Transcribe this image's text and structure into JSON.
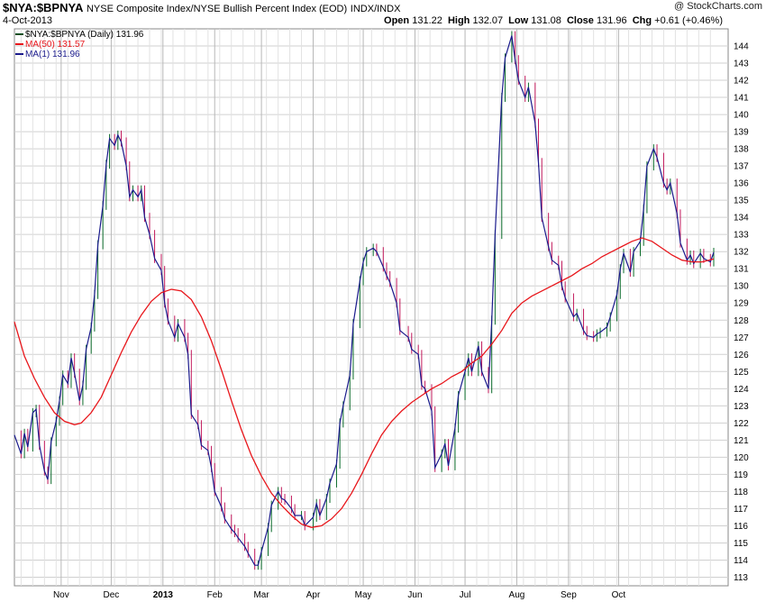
{
  "header": {
    "symbol": "$NYA:$BPNYA",
    "description": "NYSE Composite Index/NYSE Bullish Percent Index (EOD)",
    "exchange": "INDX/INDX",
    "date": "4-Oct-2013",
    "copyright": "@ StockCharts.com",
    "open_label": "Open",
    "open": "131.22",
    "high_label": "High",
    "high": "132.07",
    "low_label": "Low",
    "low": "131.08",
    "close_label": "Close",
    "close": "131.96",
    "chg_label": "Chg",
    "chg": "+0.61 (+0.46%)"
  },
  "legend": {
    "price": "$NYA:$BPNYA (Daily) 131.96",
    "ma50": "MA(50) 131.57",
    "ma1": "MA(1) 131.96"
  },
  "colors": {
    "ma50": "#e8161b",
    "ma1": "#1a1a8c",
    "up": "#0a6b2a",
    "down": "#c2185b",
    "grid": "#d0d0d0"
  },
  "chart_data": {
    "type": "line",
    "x_labels": [
      "Nov",
      "Dec",
      "2013",
      "Feb",
      "Mar",
      "Apr",
      "May",
      "Jun",
      "Jul",
      "Aug",
      "Sep",
      "Oct"
    ],
    "y_ticks": [
      113,
      114,
      115,
      116,
      117,
      118,
      119,
      120,
      121,
      122,
      123,
      124,
      125,
      126,
      127,
      128,
      129,
      130,
      131,
      132,
      133,
      134,
      135,
      136,
      137,
      138,
      139,
      140,
      141,
      142,
      143,
      144
    ],
    "ylim": [
      112.5,
      145
    ],
    "grid": true,
    "series": [
      {
        "name": "MA(1)",
        "points": [
          [
            "2012-10-04",
            121.3
          ],
          [
            "2012-10-08",
            120.2
          ],
          [
            "2012-10-10",
            121.4
          ],
          [
            "2012-10-12",
            120.6
          ],
          [
            "2012-10-15",
            122.6
          ],
          [
            "2012-10-17",
            122.8
          ],
          [
            "2012-10-19",
            120.7
          ],
          [
            "2012-10-22",
            119.2
          ],
          [
            "2012-10-24",
            118.7
          ],
          [
            "2012-10-26",
            120.9
          ],
          [
            "2012-10-29",
            122.1
          ],
          [
            "2012-10-31",
            123.3
          ],
          [
            "2012-11-02",
            124.8
          ],
          [
            "2012-11-05",
            124.3
          ],
          [
            "2012-11-07",
            125.8
          ],
          [
            "2012-11-09",
            124.9
          ],
          [
            "2012-11-12",
            123.3
          ],
          [
            "2012-11-14",
            124.2
          ],
          [
            "2012-11-16",
            126.3
          ],
          [
            "2012-11-19",
            127.6
          ],
          [
            "2012-11-21",
            129.5
          ],
          [
            "2012-11-23",
            132.4
          ],
          [
            "2012-11-26",
            134.7
          ],
          [
            "2012-11-28",
            137.1
          ],
          [
            "2012-11-30",
            138.6
          ],
          [
            "2012-12-03",
            138.2
          ],
          [
            "2012-12-05",
            138.8
          ],
          [
            "2012-12-07",
            138.4
          ],
          [
            "2012-12-10",
            137.0
          ],
          [
            "2012-12-12",
            135.2
          ],
          [
            "2012-12-14",
            135.6
          ],
          [
            "2012-12-17",
            135.2
          ],
          [
            "2012-12-19",
            135.6
          ],
          [
            "2012-12-21",
            134.0
          ],
          [
            "2012-12-24",
            133.0
          ],
          [
            "2012-12-27",
            131.6
          ],
          [
            "2012-12-31",
            130.9
          ],
          [
            "2013-01-02",
            129.0
          ],
          [
            "2013-01-04",
            128.0
          ],
          [
            "2013-01-08",
            127.0
          ],
          [
            "2013-01-10",
            127.8
          ],
          [
            "2013-01-14",
            127.0
          ],
          [
            "2013-01-16",
            126.0
          ],
          [
            "2013-01-18",
            122.5
          ],
          [
            "2013-01-22",
            121.9
          ],
          [
            "2013-01-24",
            120.7
          ],
          [
            "2013-01-28",
            120.4
          ],
          [
            "2013-01-30",
            119.4
          ],
          [
            "2013-02-01",
            118.0
          ],
          [
            "2013-02-05",
            117.1
          ],
          [
            "2013-02-07",
            116.4
          ],
          [
            "2013-02-11",
            115.8
          ],
          [
            "2013-02-13",
            115.6
          ],
          [
            "2013-02-15",
            115.3
          ],
          [
            "2013-02-19",
            114.8
          ],
          [
            "2013-02-21",
            114.4
          ],
          [
            "2013-02-25",
            113.7
          ],
          [
            "2013-02-27",
            113.7
          ],
          [
            "2013-03-01",
            114.5
          ],
          [
            "2013-03-05",
            115.9
          ],
          [
            "2013-03-07",
            117.2
          ],
          [
            "2013-03-11",
            118.0
          ],
          [
            "2013-03-13",
            117.6
          ],
          [
            "2013-03-15",
            117.5
          ],
          [
            "2013-03-19",
            117.0
          ],
          [
            "2013-03-21",
            116.6
          ],
          [
            "2013-03-25",
            116.6
          ],
          [
            "2013-03-27",
            116.0
          ],
          [
            "2013-04-01",
            116.5
          ],
          [
            "2013-04-03",
            117.3
          ],
          [
            "2013-04-05",
            116.6
          ],
          [
            "2013-04-09",
            117.6
          ],
          [
            "2013-04-11",
            118.5
          ],
          [
            "2013-04-15",
            119.6
          ],
          [
            "2013-04-17",
            122.0
          ],
          [
            "2013-04-19",
            123.0
          ],
          [
            "2013-04-23",
            124.8
          ],
          [
            "2013-04-25",
            127.8
          ],
          [
            "2013-04-29",
            130.3
          ],
          [
            "2013-05-01",
            131.4
          ],
          [
            "2013-05-03",
            132.0
          ],
          [
            "2013-05-07",
            132.2
          ],
          [
            "2013-05-09",
            132.0
          ],
          [
            "2013-05-13",
            131.1
          ],
          [
            "2013-05-15",
            130.6
          ],
          [
            "2013-05-17",
            130.2
          ],
          [
            "2013-05-21",
            129.0
          ],
          [
            "2013-05-23",
            127.4
          ],
          [
            "2013-05-28",
            127.0
          ],
          [
            "2013-05-30",
            126.3
          ],
          [
            "2013-06-03",
            126.0
          ],
          [
            "2013-06-05",
            124.2
          ],
          [
            "2013-06-07",
            124.0
          ],
          [
            "2013-06-11",
            122.7
          ],
          [
            "2013-06-13",
            119.4
          ],
          [
            "2013-06-17",
            120.2
          ],
          [
            "2013-06-19",
            120.8
          ],
          [
            "2013-06-21",
            119.5
          ],
          [
            "2013-06-25",
            121.7
          ],
          [
            "2013-06-27",
            123.6
          ],
          [
            "2013-07-01",
            125.0
          ],
          [
            "2013-07-03",
            125.8
          ],
          [
            "2013-07-05",
            125.0
          ],
          [
            "2013-07-09",
            126.5
          ],
          [
            "2013-07-11",
            125.0
          ],
          [
            "2013-07-15",
            124.0
          ],
          [
            "2013-07-17",
            128.0
          ],
          [
            "2013-07-19",
            133.0
          ],
          [
            "2013-07-23",
            141.0
          ],
          [
            "2013-07-25",
            143.3
          ],
          [
            "2013-07-29",
            144.6
          ],
          [
            "2013-07-31",
            143.2
          ],
          [
            "2013-08-02",
            142.0
          ],
          [
            "2013-08-06",
            141.0
          ],
          [
            "2013-08-08",
            141.6
          ],
          [
            "2013-08-12",
            139.5
          ],
          [
            "2013-08-14",
            137.2
          ],
          [
            "2013-08-16",
            134.0
          ],
          [
            "2013-08-20",
            132.3
          ],
          [
            "2013-08-22",
            131.5
          ],
          [
            "2013-08-26",
            131.2
          ],
          [
            "2013-08-28",
            130.0
          ],
          [
            "2013-08-30",
            129.3
          ],
          [
            "2013-09-04",
            128.2
          ],
          [
            "2013-09-06",
            128.4
          ],
          [
            "2013-09-10",
            127.4
          ],
          [
            "2013-09-12",
            127.1
          ],
          [
            "2013-09-16",
            127.0
          ],
          [
            "2013-09-18",
            127.2
          ],
          [
            "2013-09-20",
            127.3
          ],
          [
            "2013-09-24",
            127.6
          ],
          [
            "2013-09-26",
            128.2
          ],
          [
            "2013-09-30",
            129.5
          ],
          [
            "2013-10-02",
            131.0
          ],
          [
            "2013-10-04",
            131.9
          ],
          [
            "2013-10-08",
            130.8
          ],
          [
            "2013-10-10",
            132.0
          ],
          [
            "2013-10-14",
            132.6
          ],
          [
            "2013-10-16",
            134.5
          ],
          [
            "2013-10-18",
            137.0
          ],
          [
            "2013-10-22",
            138.0
          ],
          [
            "2013-10-24",
            137.5
          ],
          [
            "2013-10-28",
            136.0
          ],
          [
            "2013-10-30",
            135.6
          ],
          [
            "2013-11-01",
            136.0
          ],
          [
            "2013-11-05",
            134.2
          ],
          [
            "2013-11-07",
            132.5
          ],
          [
            "2013-11-11",
            131.5
          ],
          [
            "2013-11-13",
            131.8
          ],
          [
            "2013-11-15",
            131.3
          ],
          [
            "2013-11-19",
            131.9
          ],
          [
            "2013-11-21",
            131.6
          ],
          [
            "2013-11-25",
            131.4
          ],
          [
            "2013-11-27",
            131.96
          ]
        ]
      },
      {
        "name": "MA(50)",
        "points": [
          [
            "2012-10-04",
            127.9
          ],
          [
            "2012-10-10",
            125.9
          ],
          [
            "2012-10-16",
            124.6
          ],
          [
            "2012-10-22",
            123.5
          ],
          [
            "2012-10-28",
            122.6
          ],
          [
            "2012-11-03",
            122.1
          ],
          [
            "2012-11-09",
            121.9
          ],
          [
            "2012-11-13",
            122.0
          ],
          [
            "2012-11-19",
            122.6
          ],
          [
            "2012-11-25",
            123.5
          ],
          [
            "2012-12-01",
            124.8
          ],
          [
            "2012-12-07",
            126.1
          ],
          [
            "2012-12-13",
            127.3
          ],
          [
            "2012-12-19",
            128.3
          ],
          [
            "2012-12-25",
            129.1
          ],
          [
            "2012-12-31",
            129.6
          ],
          [
            "2013-01-06",
            129.8
          ],
          [
            "2013-01-12",
            129.7
          ],
          [
            "2013-01-18",
            129.2
          ],
          [
            "2013-01-24",
            128.2
          ],
          [
            "2013-01-30",
            126.8
          ],
          [
            "2013-02-05",
            125.1
          ],
          [
            "2013-02-11",
            123.3
          ],
          [
            "2013-02-17",
            121.6
          ],
          [
            "2013-02-23",
            120.1
          ],
          [
            "2013-03-01",
            118.9
          ],
          [
            "2013-03-07",
            117.9
          ],
          [
            "2013-03-13",
            117.2
          ],
          [
            "2013-03-19",
            116.6
          ],
          [
            "2013-03-25",
            116.1
          ],
          [
            "2013-03-31",
            115.9
          ],
          [
            "2013-04-06",
            116.0
          ],
          [
            "2013-04-12",
            116.4
          ],
          [
            "2013-04-18",
            117.0
          ],
          [
            "2013-04-24",
            117.9
          ],
          [
            "2013-04-30",
            119.0
          ],
          [
            "2013-05-06",
            120.2
          ],
          [
            "2013-05-12",
            121.3
          ],
          [
            "2013-05-18",
            122.1
          ],
          [
            "2013-05-24",
            122.7
          ],
          [
            "2013-05-30",
            123.2
          ],
          [
            "2013-06-05",
            123.6
          ],
          [
            "2013-06-11",
            124.0
          ],
          [
            "2013-06-17",
            124.3
          ],
          [
            "2013-06-23",
            124.7
          ],
          [
            "2013-06-29",
            125.0
          ],
          [
            "2013-07-05",
            125.5
          ],
          [
            "2013-07-11",
            125.9
          ],
          [
            "2013-07-17",
            126.6
          ],
          [
            "2013-07-23",
            127.4
          ],
          [
            "2013-07-29",
            128.4
          ],
          [
            "2013-08-04",
            129.0
          ],
          [
            "2013-08-10",
            129.4
          ],
          [
            "2013-08-16",
            129.7
          ],
          [
            "2013-08-22",
            130.0
          ],
          [
            "2013-08-28",
            130.3
          ],
          [
            "2013-09-03",
            130.6
          ],
          [
            "2013-09-09",
            131.0
          ],
          [
            "2013-09-15",
            131.3
          ],
          [
            "2013-09-21",
            131.7
          ],
          [
            "2013-09-27",
            132.0
          ],
          [
            "2013-10-03",
            132.3
          ],
          [
            "2013-10-09",
            132.6
          ],
          [
            "2013-10-15",
            132.8
          ],
          [
            "2013-10-21",
            132.6
          ],
          [
            "2013-10-27",
            132.2
          ],
          [
            "2013-11-02",
            131.8
          ],
          [
            "2013-11-08",
            131.5
          ],
          [
            "2013-11-14",
            131.4
          ],
          [
            "2013-11-20",
            131.4
          ],
          [
            "2013-11-27",
            131.57
          ]
        ]
      }
    ]
  }
}
